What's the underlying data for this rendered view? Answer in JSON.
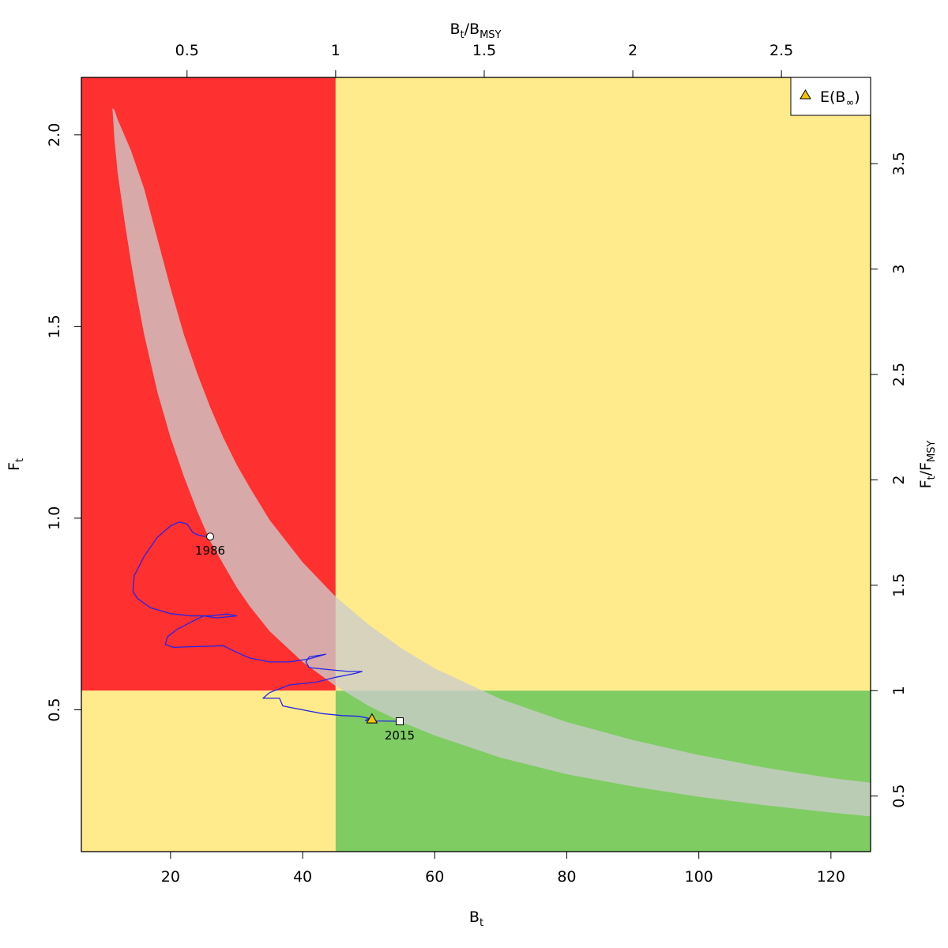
{
  "chart_data": {
    "type": "scatter",
    "xlabel": {
      "main": "B",
      "sub": "t"
    },
    "ylabel": {
      "main": "F",
      "sub": "t"
    },
    "top_xlabel": {
      "main": "B",
      "sub1": "t",
      "slash": "/B",
      "sub2": "MSY"
    },
    "right_ylabel": {
      "main": "F",
      "sub1": "t",
      "slash": "/F",
      "sub2": "MSY"
    },
    "xlim": [
      6.5,
      126
    ],
    "ylim": [
      0.13,
      2.15
    ],
    "x_ticks": [
      20,
      40,
      60,
      80,
      100,
      120
    ],
    "x_tick_labels": [
      "20",
      "40",
      "60",
      "80",
      "100",
      "120"
    ],
    "y_ticks": [
      0.5,
      1.0,
      1.5,
      2.0
    ],
    "y_tick_labels": [
      "0.5",
      "1.0",
      "1.5",
      "2.0"
    ],
    "top_ticks": [
      0.5,
      1,
      1.5,
      2,
      2.5
    ],
    "top_tick_labels": [
      "0.5",
      "1",
      "1.5",
      "2",
      "2.5"
    ],
    "right_ticks": [
      0.5,
      1,
      1.5,
      2,
      2.5,
      3,
      3.5
    ],
    "right_tick_labels": [
      "0.5",
      "1",
      "1.5",
      "2",
      "2.5",
      "3",
      "3.5"
    ],
    "bmsy": 45,
    "fmsy": 0.55,
    "quadrant_colors": {
      "overfished_overfishing": "#ff3030",
      "mixed": "#ffeb8b",
      "healthy": "#7fcc63"
    },
    "msy_band": {
      "color": "#cccccc",
      "opacity": 0.78,
      "lower": [
        [
          11.2,
          2.07
        ],
        [
          11.5,
          1.99
        ],
        [
          12,
          1.9
        ],
        [
          13,
          1.78
        ],
        [
          14,
          1.67
        ],
        [
          15,
          1.57
        ],
        [
          16,
          1.48
        ],
        [
          18,
          1.33
        ],
        [
          20,
          1.21
        ],
        [
          22,
          1.11
        ],
        [
          24,
          1.02
        ],
        [
          26,
          0.94
        ],
        [
          28,
          0.88
        ],
        [
          30,
          0.82
        ],
        [
          32,
          0.77
        ],
        [
          35,
          0.705
        ],
        [
          40,
          0.625
        ],
        [
          45,
          0.562
        ],
        [
          50,
          0.51
        ],
        [
          55,
          0.468
        ],
        [
          60,
          0.433
        ],
        [
          70,
          0.375
        ],
        [
          80,
          0.332
        ],
        [
          90,
          0.3
        ],
        [
          100,
          0.273
        ],
        [
          110,
          0.251
        ],
        [
          120,
          0.232
        ],
        [
          126,
          0.222
        ]
      ],
      "upper": [
        [
          126,
          0.31
        ],
        [
          120,
          0.322
        ],
        [
          110,
          0.349
        ],
        [
          100,
          0.382
        ],
        [
          90,
          0.421
        ],
        [
          80,
          0.468
        ],
        [
          70,
          0.528
        ],
        [
          60,
          0.608
        ],
        [
          55,
          0.66
        ],
        [
          50,
          0.722
        ],
        [
          45,
          0.795
        ],
        [
          40,
          0.885
        ],
        [
          35,
          0.995
        ],
        [
          32,
          1.08
        ],
        [
          30,
          1.14
        ],
        [
          28,
          1.21
        ],
        [
          26,
          1.29
        ],
        [
          24,
          1.38
        ],
        [
          22,
          1.48
        ],
        [
          20,
          1.6
        ],
        [
          18,
          1.73
        ],
        [
          16,
          1.86
        ],
        [
          14,
          1.96
        ],
        [
          13,
          2.0
        ],
        [
          12,
          2.04
        ],
        [
          11.5,
          2.065
        ],
        [
          11.2,
          2.07
        ]
      ]
    },
    "trajectory": {
      "color": "#2525e6",
      "points": [
        [
          26,
          0.952
        ],
        [
          25,
          0.953
        ],
        [
          24.2,
          0.956
        ],
        [
          23.4,
          0.962
        ],
        [
          22.5,
          0.985
        ],
        [
          21.3,
          0.99
        ],
        [
          20,
          0.98
        ],
        [
          18,
          0.95
        ],
        [
          16,
          0.9
        ],
        [
          14.5,
          0.85
        ],
        [
          14.3,
          0.81
        ],
        [
          15,
          0.79
        ],
        [
          17,
          0.766
        ],
        [
          20,
          0.751
        ],
        [
          23,
          0.745
        ],
        [
          26,
          0.745
        ],
        [
          28.5,
          0.75
        ],
        [
          30,
          0.745
        ],
        [
          27,
          0.74
        ],
        [
          25,
          0.745
        ],
        [
          23,
          0.728
        ],
        [
          21,
          0.71
        ],
        [
          19.5,
          0.69
        ],
        [
          19.2,
          0.67
        ],
        [
          20.5,
          0.663
        ],
        [
          24,
          0.665
        ],
        [
          28,
          0.667
        ],
        [
          30,
          0.65
        ],
        [
          32,
          0.635
        ],
        [
          35,
          0.625
        ],
        [
          38,
          0.625
        ],
        [
          41,
          0.633
        ],
        [
          43.5,
          0.645
        ],
        [
          41,
          0.638
        ],
        [
          40.5,
          0.625
        ],
        [
          41,
          0.61
        ],
        [
          44,
          0.605
        ],
        [
          47,
          0.6
        ],
        [
          49,
          0.6
        ],
        [
          48,
          0.595
        ],
        [
          45,
          0.585
        ],
        [
          42,
          0.572
        ],
        [
          38,
          0.565
        ],
        [
          35,
          0.545
        ],
        [
          34,
          0.53
        ],
        [
          36.5,
          0.53
        ],
        [
          37,
          0.51
        ],
        [
          40,
          0.5
        ],
        [
          43,
          0.49
        ],
        [
          46,
          0.485
        ],
        [
          48.5,
          0.483
        ],
        [
          50,
          0.478
        ],
        [
          49.5,
          0.472
        ],
        [
          51,
          0.471
        ],
        [
          54.7,
          0.47
        ]
      ]
    },
    "points": [
      {
        "name": "start",
        "label": "1986",
        "x": 26,
        "y": 0.952,
        "shape": "circle",
        "fill": "#ffffff"
      },
      {
        "name": "end",
        "label": "2015",
        "x": 54.7,
        "y": 0.47,
        "shape": "square",
        "fill": "#ffffff"
      },
      {
        "name": "equilibrium",
        "label": "E(B∞)",
        "x": 50.5,
        "y": 0.476,
        "shape": "triangle",
        "fill": "#f2c500"
      }
    ],
    "legend": {
      "position": "top-right",
      "entries": [
        {
          "text_main": "E(B",
          "text_sub": "∞",
          "text_end": ")",
          "marker": "triangle",
          "color": "#f2c500"
        }
      ]
    },
    "grid": false
  }
}
